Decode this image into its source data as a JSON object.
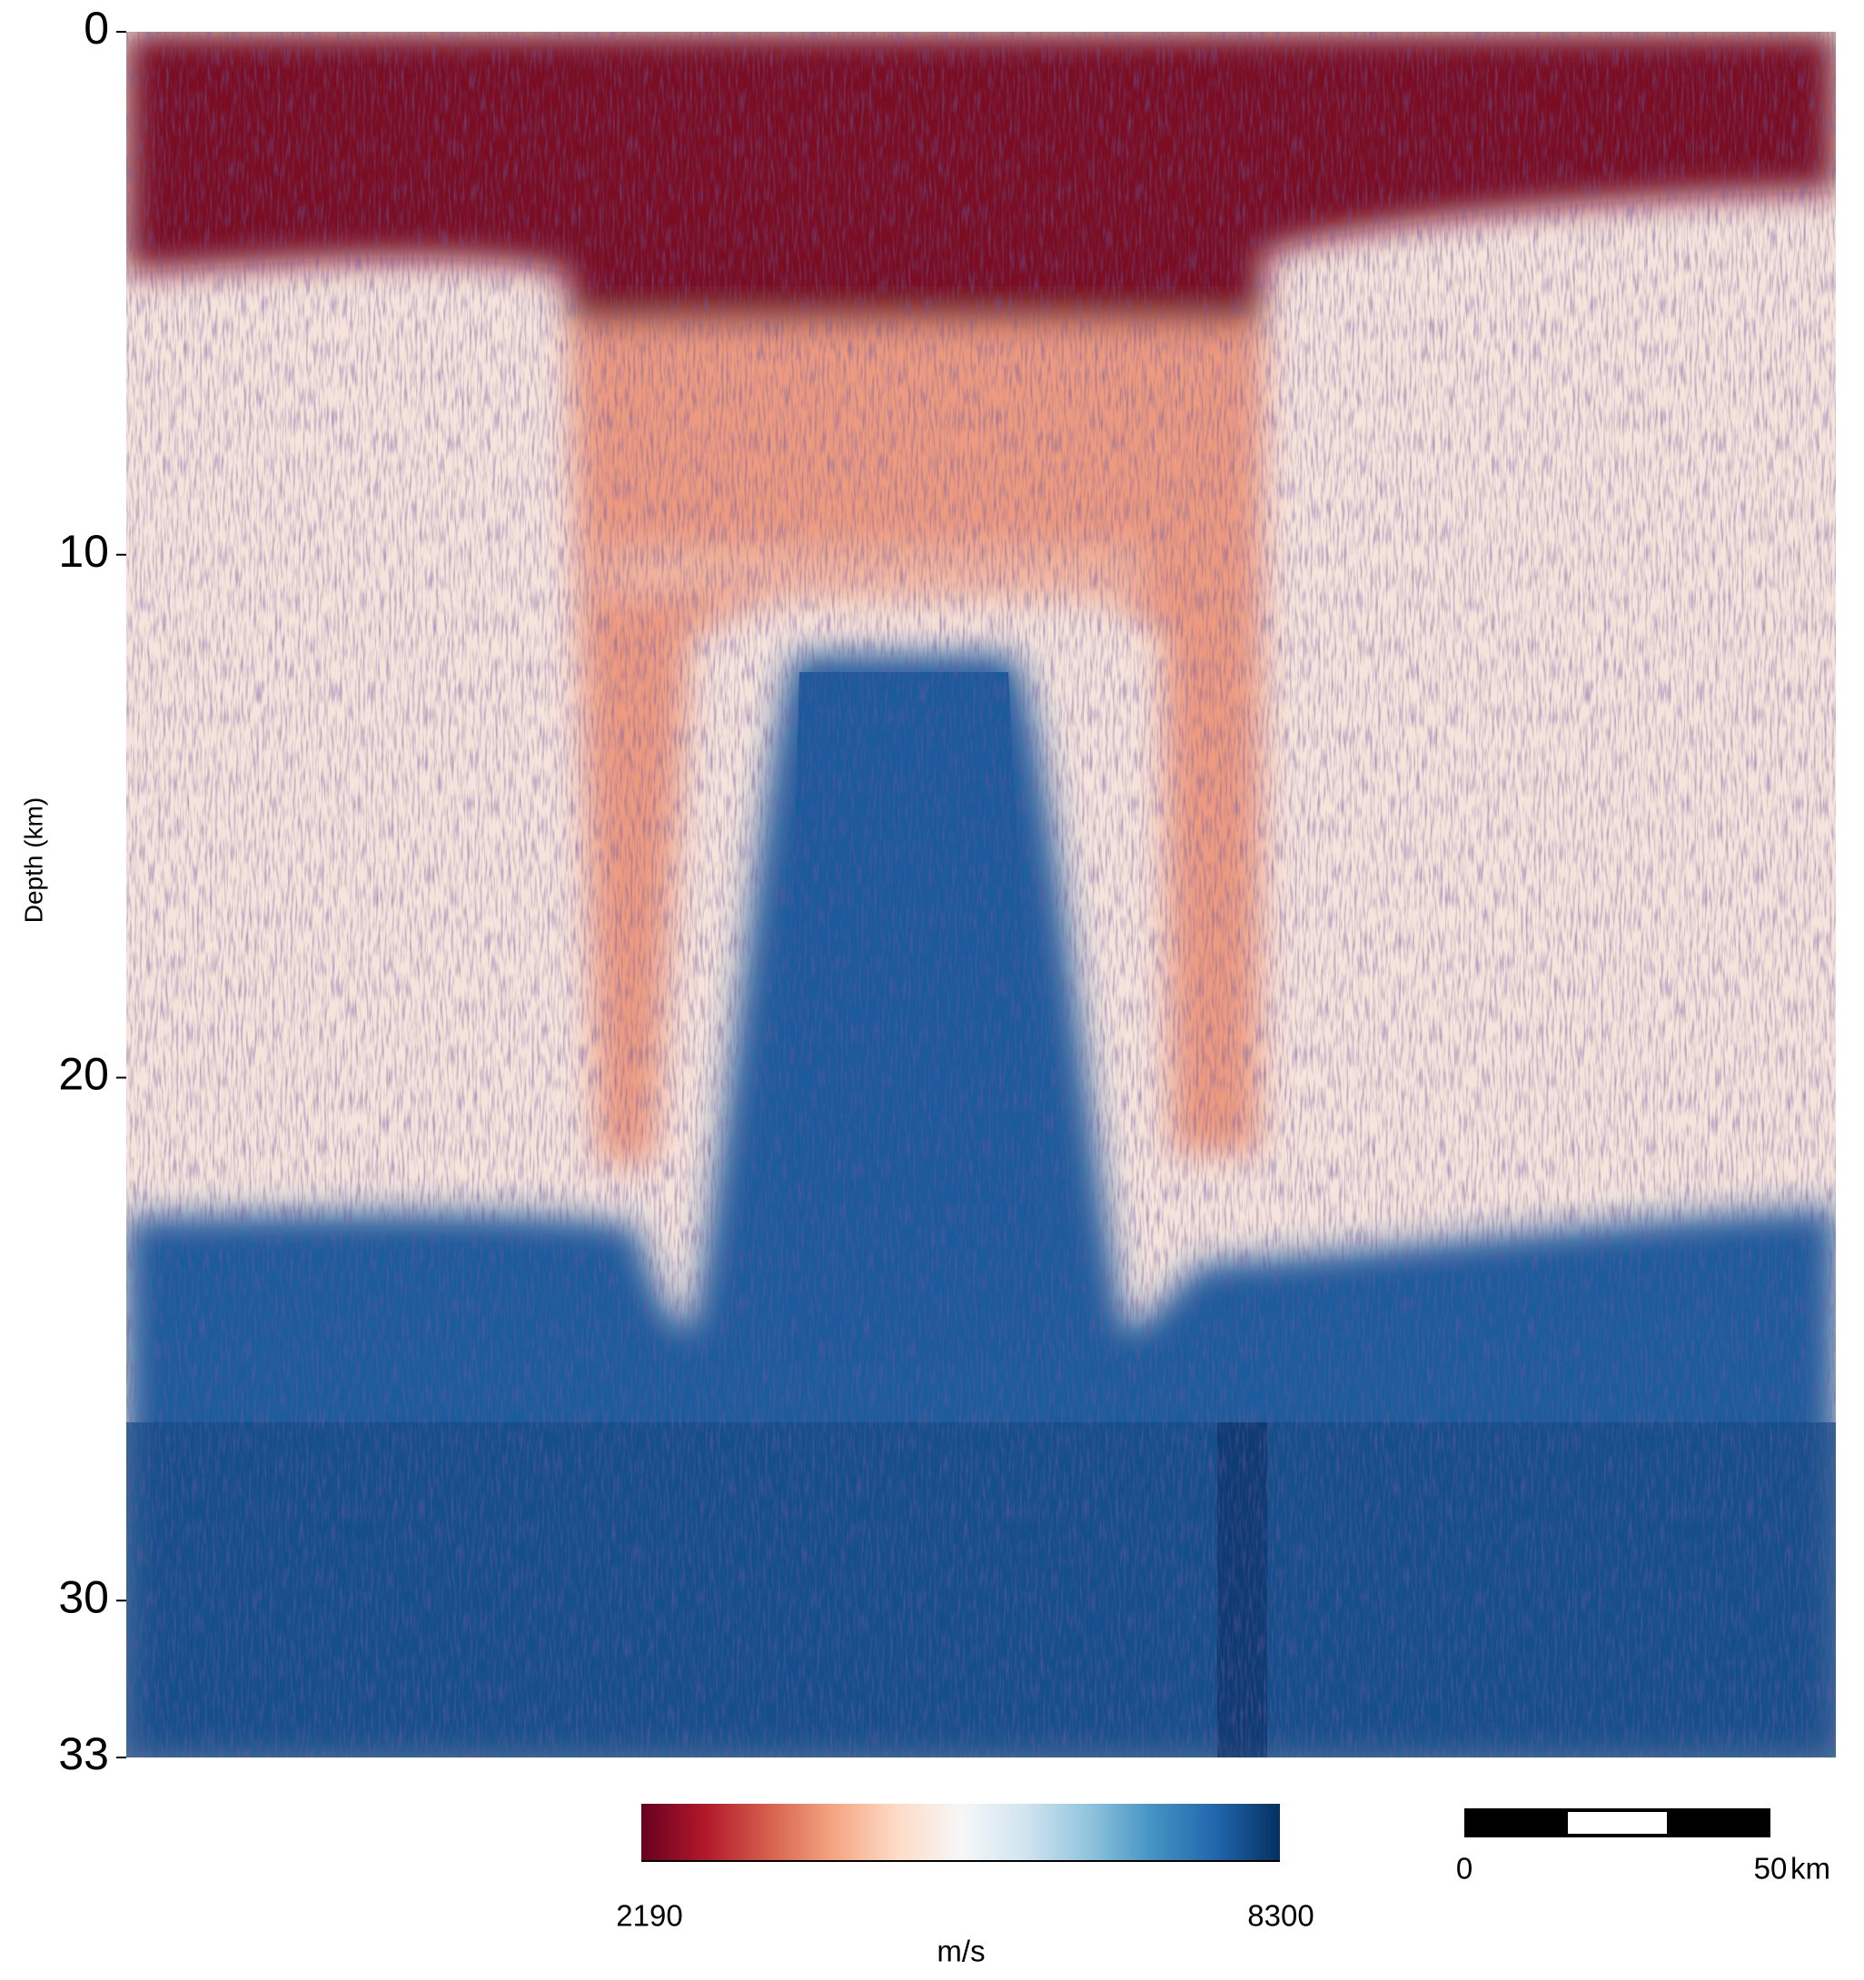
{
  "depth_axis": {
    "label": "Depth  (km)",
    "range": [
      0,
      33
    ],
    "ticks": [
      0,
      10,
      20,
      30,
      33
    ]
  },
  "colorbar": {
    "min": 2190,
    "max": 8300,
    "unit": "m/s"
  },
  "scale_bar": {
    "start": 0,
    "end": 50,
    "unit": "km"
  }
}
